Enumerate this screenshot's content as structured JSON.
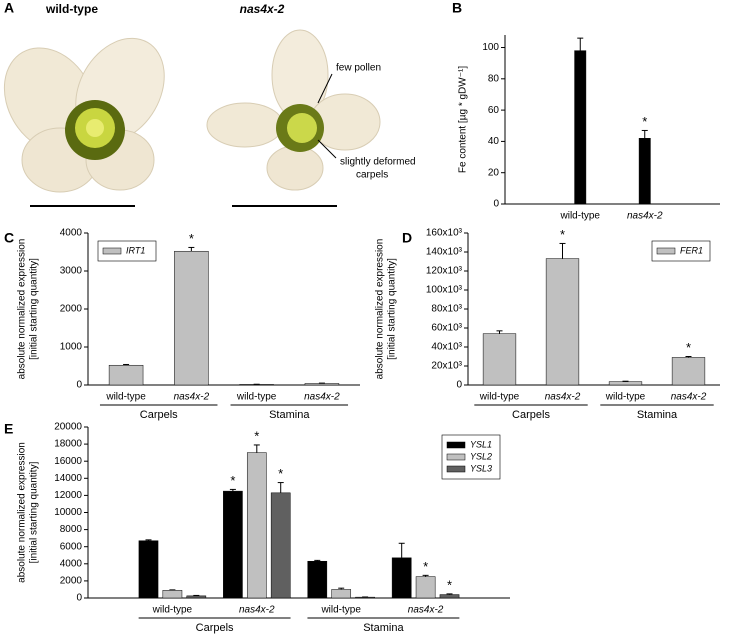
{
  "photo_panel": {
    "panel": "A",
    "labels": [
      "wild-type",
      "nas4x-2"
    ],
    "annotations": [
      "few pollen",
      "slightly deformed",
      "carpels"
    ]
  },
  "chart_data": [
    {
      "type": "bar",
      "panel": "B",
      "ylabel": [
        "Fe content [µg * gDW⁻¹]"
      ],
      "categories": [
        "wild-type",
        "nas4x-2"
      ],
      "series": [
        {
          "color": "#000000",
          "values": [
            98,
            42
          ],
          "errors": [
            8,
            5
          ],
          "marks": [
            null,
            "*"
          ]
        }
      ],
      "ylim": [
        0,
        108
      ],
      "yticks": [
        0,
        20,
        40,
        60,
        80,
        100
      ]
    },
    {
      "type": "bar",
      "panel": "C",
      "ylabel": [
        "absolute normalized expression",
        "[initial starting quantity]"
      ],
      "categories": [
        "wild-type",
        "nas4x-2",
        "wild-type",
        "nas4x-2"
      ],
      "groups": [
        "Carpels",
        "Stamina"
      ],
      "series": [
        {
          "name": "IRT1",
          "color": "#c0c0c0",
          "values": [
            520,
            3520,
            15,
            40
          ],
          "errors": [
            20,
            100,
            5,
            10
          ],
          "marks": [
            null,
            "*",
            null,
            null
          ]
        }
      ],
      "ylim": [
        0,
        4000
      ],
      "yticks": [
        0,
        1000,
        2000,
        3000,
        4000
      ],
      "legend": "top-left"
    },
    {
      "type": "bar",
      "panel": "D",
      "ylabel": [
        "absolute normalized expression",
        "[initial starting quantity]"
      ],
      "categories": [
        "wild-type",
        "nas4x-2",
        "wild-type",
        "nas4x-2"
      ],
      "groups": [
        "Carpels",
        "Stamina"
      ],
      "series": [
        {
          "name": "FER1",
          "color": "#c0c0c0",
          "values": [
            54000,
            133000,
            3500,
            29000
          ],
          "errors": [
            3000,
            16000,
            500,
            1000
          ],
          "marks": [
            null,
            "*",
            null,
            "*"
          ]
        }
      ],
      "ylim": [
        0,
        160000
      ],
      "yticks": [
        0,
        {
          "value": 20000,
          "label": "20x10³"
        },
        {
          "value": 40000,
          "label": "40x10³"
        },
        {
          "value": 60000,
          "label": "60x10³"
        },
        {
          "value": 80000,
          "label": "80x10³"
        },
        {
          "value": 100000,
          "label": "100x10³"
        },
        {
          "value": 120000,
          "label": "120x10³"
        },
        {
          "value": 140000,
          "label": "140x10³"
        },
        {
          "value": 160000,
          "label": "160x10³"
        }
      ],
      "legend": "top-right"
    },
    {
      "type": "bar",
      "panel": "E",
      "ylabel": [
        "absolute normalized expression",
        "[initial starting quantity]"
      ],
      "categories": [
        "wild-type",
        "nas4x-2",
        "wild-type",
        "nas4x-2"
      ],
      "groups": [
        "Carpels",
        "Stamina"
      ],
      "series": [
        {
          "name": "YSL1",
          "color": "#000000",
          "values": [
            6700,
            12500,
            4300,
            4700
          ],
          "errors": [
            100,
            200,
            100,
            1700
          ],
          "marks": [
            null,
            "*",
            null,
            null
          ]
        },
        {
          "name": "YSL2",
          "color": "#c0c0c0",
          "values": [
            900,
            17000,
            1000,
            2500
          ],
          "errors": [
            50,
            900,
            150,
            150
          ],
          "marks": [
            null,
            "*",
            null,
            "*"
          ]
        },
        {
          "name": "YSL3",
          "color": "#606060",
          "values": [
            250,
            12300,
            100,
            400
          ],
          "errors": [
            50,
            1200,
            20,
            80
          ],
          "marks": [
            null,
            "*",
            null,
            "*"
          ]
        }
      ],
      "ylim": [
        0,
        20000
      ],
      "yticks": [
        0,
        2000,
        4000,
        6000,
        8000,
        10000,
        12000,
        14000,
        16000,
        18000,
        20000
      ],
      "legend": "top-right"
    }
  ]
}
